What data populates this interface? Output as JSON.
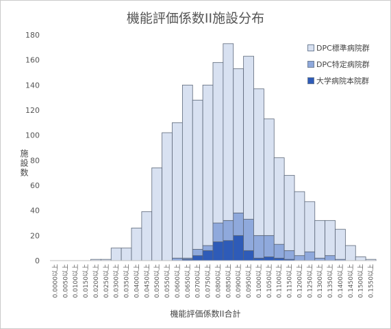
{
  "chart_data": {
    "type": "bar",
    "stacked": true,
    "title": "機能評価係数II施設分布",
    "xlabel": "機能評価係数II合計",
    "ylabel": "施設数",
    "ylim": [
      0,
      180
    ],
    "yticks": [
      0,
      20,
      40,
      60,
      80,
      100,
      120,
      140,
      160,
      180
    ],
    "grid": false,
    "legend_position": "right",
    "categories": [
      "0.0000以上",
      "0.0050以上",
      "0.0100以上",
      "0.0150以上",
      "0.0200以上",
      "0.0250以上",
      "0.0300以上",
      "0.0350以上",
      "0.0400以上",
      "0.0450以上",
      "0.0500以上",
      "0.0550以上",
      "0.0600以上",
      "0.0650以上",
      "0.0700以上",
      "0.0750以上",
      "0.0800以上",
      "0.0850以上",
      "0.0900以上",
      "0.0950以上",
      "0.1000以上",
      "0.1050以上",
      "0.1100以上",
      "0.1150以上",
      "0.1200以上",
      "0.1250以上",
      "0.1300以上",
      "0.1350以上",
      "0.1400以上",
      "0.1450以上",
      "0.1500以上",
      "0.1550以上"
    ],
    "series": [
      {
        "name": "大学病院本院群",
        "color": "#2e5bb8",
        "values": [
          0,
          0,
          0,
          0,
          0,
          0,
          0,
          0,
          0,
          0,
          0,
          0,
          0,
          1,
          4,
          8,
          15,
          16,
          20,
          8,
          2,
          3,
          2,
          1,
          0,
          0,
          0,
          0,
          0,
          0,
          0,
          0
        ]
      },
      {
        "name": "DPC特定病院群",
        "color": "#8fa9dc",
        "values": [
          0,
          0,
          0,
          0,
          0,
          0,
          0,
          0,
          0,
          0,
          0,
          0,
          2,
          1,
          5,
          4,
          15,
          16,
          18,
          25,
          18,
          17,
          11,
          7,
          4,
          7,
          2,
          4,
          1,
          0,
          0,
          0
        ]
      },
      {
        "name": "DPC標準病院群",
        "color": "#d8e1f1",
        "values": [
          0,
          0,
          0,
          0,
          1,
          1,
          10,
          10,
          26,
          39,
          74,
          102,
          108,
          138,
          119,
          128,
          128,
          141,
          115,
          130,
          117,
          93,
          69,
          60,
          51,
          40,
          30,
          28,
          24,
          12,
          3,
          1
        ]
      }
    ]
  }
}
